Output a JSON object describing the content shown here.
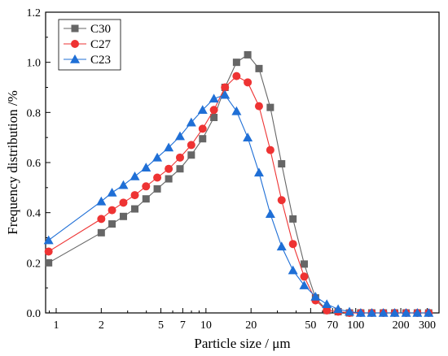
{
  "chart_data": {
    "type": "line",
    "xlabel": "Particle size / μm",
    "ylabel": "Frequency distribution /%",
    "xscale": "log",
    "xlim": [
      0.85,
      360
    ],
    "ylim": [
      0.0,
      1.2
    ],
    "x_ticks": [
      1,
      2,
      5,
      7,
      10,
      20,
      50,
      70,
      100,
      200,
      300
    ],
    "x_tick_labels": [
      "1",
      "2",
      "5",
      "7",
      "10",
      "20",
      "50",
      "70",
      "100",
      "200",
      "300"
    ],
    "y_ticks": [
      0.0,
      0.2,
      0.4,
      0.6,
      0.8,
      1.0,
      1.2
    ],
    "y_tick_labels": [
      "0.0",
      "0.2",
      "0.4",
      "0.6",
      "0.8",
      "1.0",
      "1.2"
    ],
    "grid": false,
    "legend_position": "top-left",
    "series": [
      {
        "name": "C30",
        "color": "#666666",
        "marker": "square",
        "x": [
          0.89,
          2.0,
          2.36,
          2.81,
          3.35,
          3.98,
          4.73,
          5.64,
          6.71,
          7.98,
          9.5,
          11.3,
          13.4,
          16.0,
          19.0,
          22.6,
          26.9,
          32.0,
          38.1,
          45.3,
          53.9,
          64.1,
          76.3,
          90.8,
          108,
          128,
          153,
          182,
          217,
          258,
          307,
          365
        ],
        "y": [
          0.2,
          0.32,
          0.355,
          0.385,
          0.415,
          0.455,
          0.495,
          0.535,
          0.575,
          0.63,
          0.695,
          0.78,
          0.9,
          1.0,
          1.03,
          0.975,
          0.82,
          0.595,
          0.375,
          0.195,
          0.06,
          0.01,
          0.005,
          0.0,
          0.0,
          0.0,
          0.0,
          0.0,
          0.0,
          0.0,
          0.0,
          0.0
        ]
      },
      {
        "name": "C27",
        "color": "#ee3333",
        "marker": "circle",
        "x": [
          0.89,
          2.0,
          2.36,
          2.81,
          3.35,
          3.98,
          4.73,
          5.64,
          6.71,
          7.98,
          9.5,
          11.3,
          13.4,
          16.0,
          19.0,
          22.6,
          26.9,
          32.0,
          38.1,
          45.3,
          53.9,
          64.1,
          76.3,
          90.8,
          108,
          128,
          153,
          182,
          217,
          258,
          307,
          365
        ],
        "y": [
          0.245,
          0.375,
          0.41,
          0.44,
          0.47,
          0.505,
          0.54,
          0.575,
          0.62,
          0.67,
          0.735,
          0.81,
          0.9,
          0.945,
          0.92,
          0.825,
          0.65,
          0.45,
          0.275,
          0.145,
          0.05,
          0.01,
          0.005,
          0.0,
          0.0,
          0.0,
          0.0,
          0.0,
          0.0,
          0.0,
          0.0,
          0.0
        ]
      },
      {
        "name": "C23",
        "color": "#1f6fd6",
        "marker": "triangle",
        "x": [
          0.89,
          2.0,
          2.36,
          2.81,
          3.35,
          3.98,
          4.73,
          5.64,
          6.71,
          7.98,
          9.5,
          11.3,
          13.4,
          16.0,
          19.0,
          22.6,
          26.9,
          32.0,
          38.1,
          45.3,
          53.9,
          64.1,
          76.3,
          90.8,
          108,
          128,
          153,
          182,
          217,
          258,
          307,
          365
        ],
        "y": [
          0.29,
          0.445,
          0.48,
          0.51,
          0.545,
          0.58,
          0.62,
          0.66,
          0.705,
          0.76,
          0.81,
          0.855,
          0.87,
          0.805,
          0.7,
          0.56,
          0.395,
          0.265,
          0.17,
          0.11,
          0.065,
          0.035,
          0.015,
          0.005,
          0.0,
          0.0,
          0.0,
          0.0,
          0.0,
          0.0,
          0.0,
          0.0
        ]
      }
    ]
  }
}
